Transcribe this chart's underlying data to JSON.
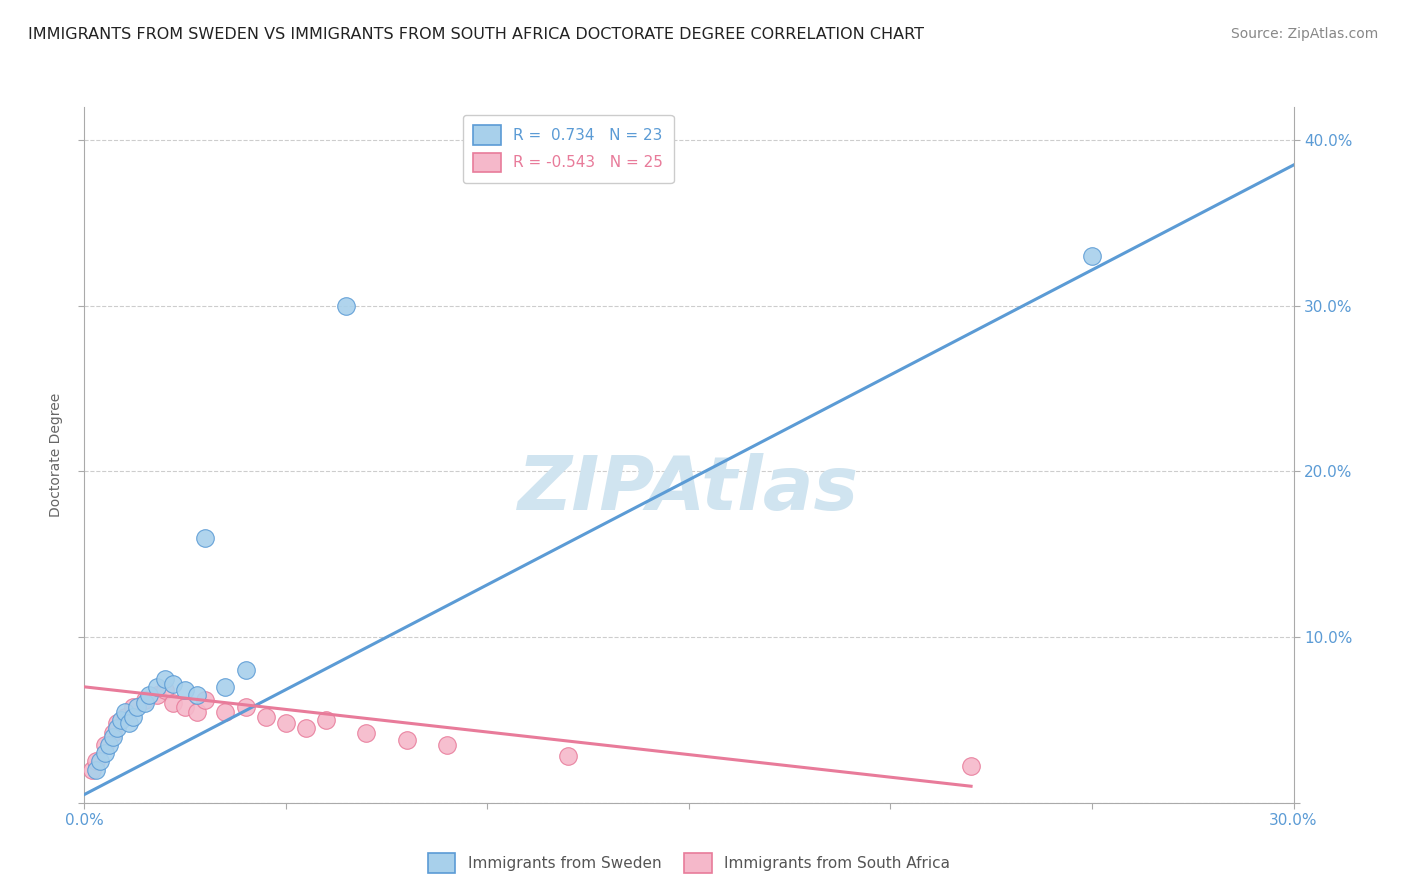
{
  "title": "IMMIGRANTS FROM SWEDEN VS IMMIGRANTS FROM SOUTH AFRICA DOCTORATE DEGREE CORRELATION CHART",
  "source": "Source: ZipAtlas.com",
  "ylabel": "Doctorate Degree",
  "ylim": [
    0,
    0.42
  ],
  "xlim": [
    0,
    0.3
  ],
  "yticks": [
    0.0,
    0.1,
    0.2,
    0.3,
    0.4
  ],
  "ytick_labels": [
    "",
    "10.0%",
    "20.0%",
    "30.0%",
    "40.0%"
  ],
  "legend_r_sweden": "R =  0.734",
  "legend_n_sweden": "N = 23",
  "legend_r_south_africa": "R = -0.543",
  "legend_n_south_africa": "N = 25",
  "sweden_color": "#a8d0eb",
  "south_africa_color": "#f5b8ca",
  "sweden_line_color": "#5b9bd5",
  "south_africa_line_color": "#e87b9a",
  "watermark_color": "#d0e4f0",
  "sweden_x": [
    0.003,
    0.004,
    0.005,
    0.006,
    0.007,
    0.008,
    0.009,
    0.01,
    0.011,
    0.012,
    0.013,
    0.015,
    0.016,
    0.018,
    0.02,
    0.022,
    0.025,
    0.028,
    0.03,
    0.035,
    0.04,
    0.065,
    0.25
  ],
  "sweden_y": [
    0.02,
    0.025,
    0.03,
    0.035,
    0.04,
    0.045,
    0.05,
    0.055,
    0.048,
    0.052,
    0.058,
    0.06,
    0.065,
    0.07,
    0.075,
    0.072,
    0.068,
    0.065,
    0.16,
    0.07,
    0.08,
    0.3,
    0.33
  ],
  "south_africa_x": [
    0.002,
    0.003,
    0.005,
    0.007,
    0.008,
    0.01,
    0.012,
    0.015,
    0.018,
    0.02,
    0.022,
    0.025,
    0.028,
    0.03,
    0.035,
    0.04,
    0.045,
    0.05,
    0.055,
    0.06,
    0.07,
    0.08,
    0.09,
    0.12,
    0.22
  ],
  "south_africa_y": [
    0.02,
    0.025,
    0.035,
    0.042,
    0.048,
    0.052,
    0.058,
    0.062,
    0.065,
    0.068,
    0.06,
    0.058,
    0.055,
    0.062,
    0.055,
    0.058,
    0.052,
    0.048,
    0.045,
    0.05,
    0.042,
    0.038,
    0.035,
    0.028,
    0.022
  ],
  "sweden_trend_x": [
    0.0,
    0.3
  ],
  "sweden_trend_y": [
    0.005,
    0.385
  ],
  "south_africa_trend_x": [
    0.0,
    0.22
  ],
  "south_africa_trend_y": [
    0.07,
    0.01
  ],
  "background_color": "#ffffff",
  "grid_color": "#c8c8c8",
  "axis_color": "#aaaaaa",
  "title_color": "#222222",
  "tick_label_color": "#5b9bd5",
  "title_fontsize": 11.5,
  "source_fontsize": 10,
  "legend_fontsize": 11,
  "ylabel_fontsize": 10,
  "bottom_legend_label1": "Immigrants from Sweden",
  "bottom_legend_label2": "Immigrants from South Africa"
}
